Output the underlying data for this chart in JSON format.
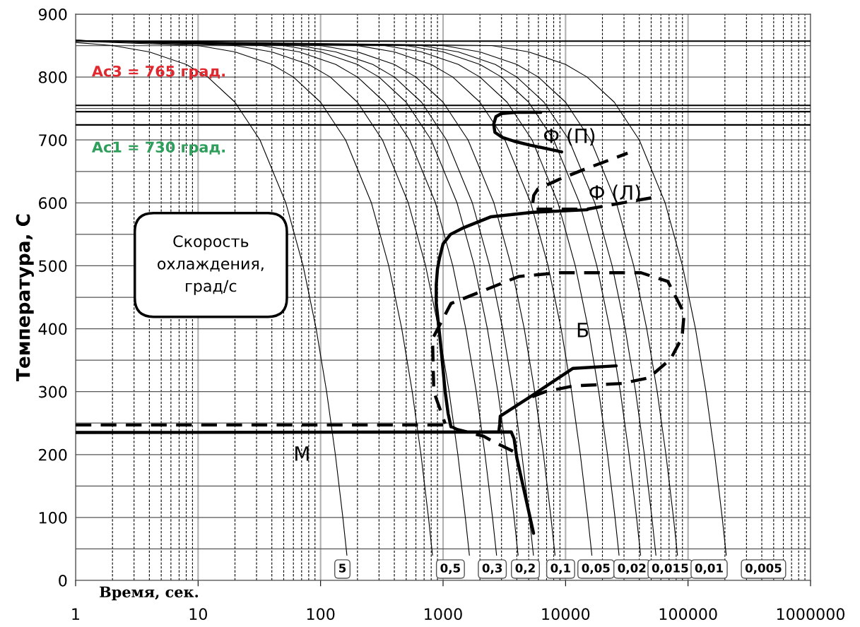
{
  "chart_data": {
    "type": "line",
    "xlabel": "Время, сек.",
    "ylabel": "Температура, С",
    "log": "x",
    "grid": true,
    "xlim": [
      1,
      1000000
    ],
    "xticks": [
      1,
      10,
      100,
      1000,
      10000,
      100000,
      1000000
    ],
    "ylim": [
      0,
      900
    ],
    "yticks": [
      0,
      {
        "value": 50,
        "label": null
      },
      100,
      {
        "value": 150,
        "label": null
      },
      200,
      {
        "value": 250,
        "label": null
      },
      300,
      {
        "value": 350,
        "label": null
      },
      400,
      {
        "value": 450,
        "label": null
      },
      500,
      {
        "value": 550,
        "label": null
      },
      600,
      {
        "value": 650,
        "label": null
      },
      700,
      {
        "value": 750,
        "label": null
      },
      800,
      {
        "value": 850,
        "label": null
      },
      900
    ],
    "series": [
      {
        "color": "#000000",
        "x": [
          1,
          2,
          4,
          8,
          12,
          20,
          32,
          52,
          72,
          92,
          112,
          132,
          152,
          164
        ],
        "values": [
          855,
          850,
          840,
          820,
          800,
          760,
          700,
          600,
          500,
          400,
          300,
          200,
          100,
          40
        ]
      },
      {
        "color": "#000000",
        "x": [
          1,
          10,
          20,
          40,
          60,
          100,
          160,
          260,
          360,
          460,
          560,
          660,
          760,
          820
        ],
        "values": [
          857,
          850,
          840,
          820,
          800,
          760,
          700,
          600,
          500,
          400,
          300,
          200,
          100,
          40
        ]
      },
      {
        "color": "#000000",
        "x": [
          1,
          20,
          40,
          80,
          120,
          200,
          320,
          520,
          720,
          920,
          1120,
          1320,
          1520,
          1640
        ],
        "values": [
          858,
          850,
          840,
          820,
          800,
          760,
          700,
          600,
          500,
          400,
          300,
          200,
          100,
          40
        ]
      },
      {
        "color": "#000000",
        "x": [
          1,
          33,
          67,
          133,
          200,
          333,
          533,
          867,
          1200,
          1533,
          1867,
          2200,
          2533,
          2733
        ],
        "values": [
          858,
          850,
          840,
          820,
          800,
          760,
          700,
          600,
          500,
          400,
          300,
          200,
          100,
          40
        ]
      },
      {
        "color": "#000000",
        "x": [
          1,
          50,
          100,
          200,
          300,
          500,
          800,
          1300,
          1800,
          2300,
          2800,
          3300,
          3800,
          4100
        ],
        "values": [
          858,
          850,
          840,
          820,
          800,
          760,
          700,
          600,
          500,
          400,
          300,
          200,
          100,
          40
        ]
      },
      {
        "color": "#000000",
        "x": [
          1,
          67,
          133,
          267,
          400,
          667,
          1067,
          1733,
          2400,
          3067,
          3733,
          4400,
          5067,
          5467
        ],
        "values": [
          858,
          850,
          840,
          820,
          800,
          760,
          700,
          600,
          500,
          400,
          300,
          200,
          100,
          40
        ]
      },
      {
        "color": "#000000",
        "x": [
          1,
          100,
          200,
          400,
          600,
          1000,
          1600,
          2600,
          3600,
          4600,
          5600,
          6600,
          7600,
          8200
        ],
        "values": [
          858,
          850,
          840,
          820,
          800,
          760,
          700,
          600,
          500,
          400,
          300,
          200,
          100,
          40
        ]
      },
      {
        "color": "#000000",
        "x": [
          1,
          200,
          400,
          800,
          1200,
          2000,
          3200,
          5200,
          7200,
          9200,
          11200,
          13200,
          15200,
          16400
        ],
        "values": [
          858,
          850,
          840,
          820,
          800,
          760,
          700,
          600,
          500,
          400,
          300,
          200,
          100,
          40
        ]
      },
      {
        "color": "#000000",
        "x": [
          1,
          333,
          667,
          1333,
          2000,
          3333,
          5333,
          8667,
          12000,
          15333,
          18667,
          22000,
          25333,
          27333
        ],
        "values": [
          858,
          850,
          840,
          820,
          800,
          760,
          700,
          600,
          500,
          400,
          300,
          200,
          100,
          40
        ]
      },
      {
        "color": "#000000",
        "x": [
          1,
          500,
          1000,
          2000,
          3000,
          5000,
          8000,
          13000,
          18000,
          23000,
          28000,
          33000,
          38000,
          41000
        ],
        "values": [
          858,
          850,
          840,
          820,
          800,
          760,
          700,
          600,
          500,
          400,
          300,
          200,
          100,
          40
        ]
      },
      {
        "color": "#000000",
        "x": [
          1,
          667,
          1333,
          2667,
          4000,
          6667,
          10667,
          17333,
          24000,
          30667,
          37333,
          44000,
          50667,
          54667
        ],
        "values": [
          858,
          850,
          840,
          820,
          800,
          760,
          700,
          600,
          500,
          400,
          300,
          200,
          100,
          40
        ]
      },
      {
        "color": "#000000",
        "x": [
          1,
          1000,
          2000,
          4000,
          6000,
          10000,
          16000,
          26000,
          36000,
          46000,
          56000,
          66000,
          76000,
          82000
        ],
        "values": [
          858,
          850,
          840,
          820,
          800,
          760,
          700,
          600,
          500,
          400,
          300,
          200,
          100,
          40
        ]
      },
      {
        "color": "#000000",
        "x": [
          1,
          2500,
          5000,
          10000,
          15000,
          25000,
          40000,
          65000,
          90000,
          115000,
          140000,
          165000,
          190000,
          205000
        ],
        "values": [
          858,
          850,
          840,
          820,
          800,
          760,
          700,
          600,
          500,
          400,
          300,
          200,
          100,
          40
        ]
      },
      {
        "color": "#000000",
        "line_style": "solid",
        "x": [
          6270,
          4000,
          3000,
          2700,
          2590,
          2650,
          3050,
          3800,
          5070,
          9300
        ],
        "values": [
          744,
          744,
          742,
          737,
          725,
          712,
          704,
          698,
          692,
          681
        ]
      },
      {
        "color": "#000000",
        "line_style": "dashed",
        "x": [
          5400,
          5500,
          5940,
          9000,
          14100,
          32100
        ],
        "values": [
          600,
          612,
          622,
          638,
          653,
          679
        ]
      },
      {
        "color": "#000000",
        "line_style": "solid",
        "x": [
          1160,
          1100,
          1040,
          950,
          880,
          880,
          900,
          937,
          1000,
          1150,
          1490,
          2470,
          5340,
          15000
        ],
        "values": [
          244,
          265,
          300,
          380,
          440,
          470,
          495,
          513,
          535,
          550,
          561,
          578,
          585,
          589
        ]
      },
      {
        "color": "#000000",
        "line_style": "dashed",
        "x": [
          5800,
          15000,
          29000,
          50000
        ],
        "values": [
          590,
          590,
          600,
          608
        ]
      },
      {
        "color": "#000000",
        "line_style": "dashed",
        "x": [
          5340,
          6870,
          11500,
          28900,
          47800,
          72200,
          89300,
          93000,
          89300,
          68500,
          41300,
          8970,
          4150,
          1159,
          820,
          840,
          1040
        ],
        "values": [
          292,
          300,
          309,
          313,
          322,
          352,
          386,
          425,
          431,
          475,
          489,
          489,
          483,
          440,
          384,
          300,
          249
        ]
      },
      {
        "color": "#000000",
        "line_style": "solid",
        "x": [
          2850,
          2900,
          2930,
          5340,
          11500,
          25900
        ],
        "values": [
          236,
          248,
          261,
          294,
          337,
          341
        ]
      },
      {
        "color": "#000000",
        "line_style": "solid",
        "x": [
          1,
          3600,
          3800,
          4000,
          5480
        ],
        "values": [
          235,
          236,
          225,
          195,
          75
        ]
      },
      {
        "color": "#000000",
        "line_style": "dashed",
        "x": [
          1,
          1100,
          1300,
          2150,
          2600,
          3940
        ],
        "values": [
          247,
          247,
          240,
          229,
          220,
          203
        ]
      }
    ],
    "ref_lines": [
      {
        "axis": "y",
        "value": 857
      },
      {
        "axis": "y",
        "value": 755
      },
      {
        "axis": "y",
        "value": 745
      },
      {
        "axis": "y",
        "value": 724
      }
    ],
    "annotations": [
      "Скорость\nохлаждения,\nград/с",
      "Ac3 = 765 град.",
      "Ac1 = 730 град.",
      "Ф (П)",
      "Ф (Л)",
      "Б",
      "М",
      "5",
      "0,5",
      "0,3",
      "0,2",
      "0,1",
      "0,05",
      "0,02",
      "0,015",
      "0,01",
      "0,005"
    ]
  }
}
